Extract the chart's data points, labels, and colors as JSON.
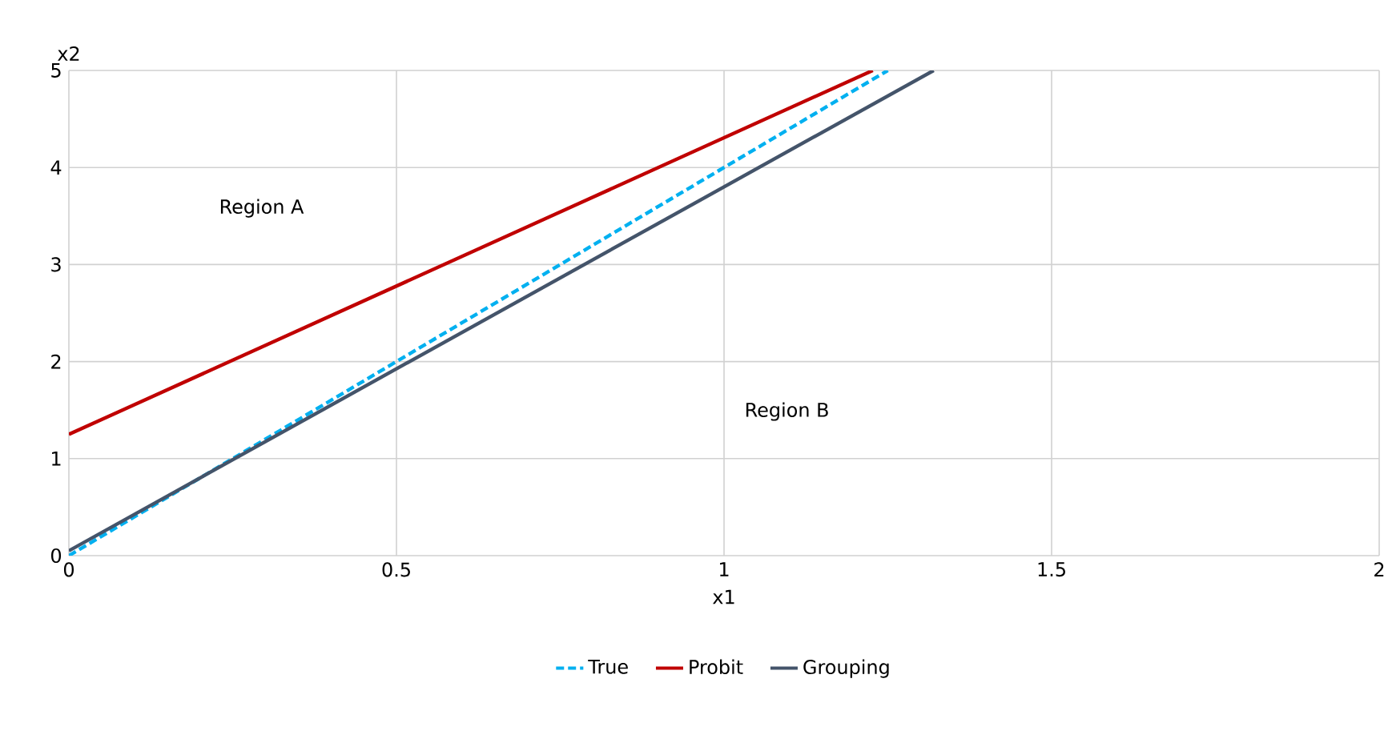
{
  "chart_data": {
    "type": "line",
    "xlabel": "x1",
    "ylabel": "x2",
    "xlim": [
      0,
      2
    ],
    "xticks": [
      0,
      0.5,
      1,
      1.5,
      2
    ],
    "ylim": [
      0,
      5
    ],
    "yticks": [
      0,
      1,
      2,
      3,
      4,
      5
    ],
    "grid": true,
    "legend": "bottom",
    "marker": "none",
    "annotations": [
      "Region A",
      "Region B"
    ],
    "series": [
      {
        "name": "True",
        "color": "#00b0f0",
        "line_style": "dashed",
        "x": [
          0,
          1.25
        ],
        "values": [
          0,
          5
        ]
      },
      {
        "name": "Probit",
        "color": "#c00000",
        "line_style": "solid",
        "x": [
          0,
          1.227
        ],
        "values": [
          1.25,
          5
        ]
      },
      {
        "name": "Grouping",
        "color": "#44546a",
        "line_style": "solid",
        "x": [
          0,
          1.32
        ],
        "values": [
          0.05,
          5
        ]
      }
    ]
  }
}
